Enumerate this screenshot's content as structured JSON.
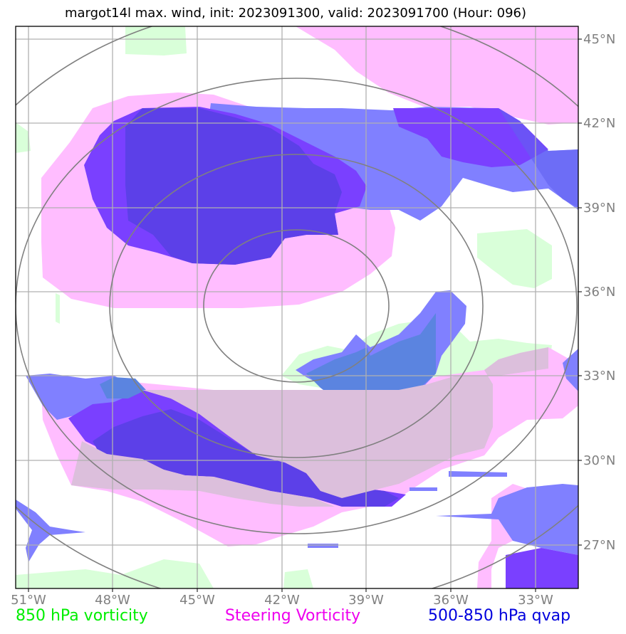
{
  "title": "margot14l max. wind, init: 2023091300, valid: 2023091700 (Hour: 096)",
  "colors": {
    "vort850": "#ccffcc",
    "steering": "#ff99ff",
    "qvap_light": "#8080ff",
    "qvap_dark": "#8040ff",
    "overlap": "#d8bfd8",
    "grid": "#b0b0b0",
    "rings": "#808080",
    "axis_labels": "#808080"
  },
  "longitude_labels": [
    "51°W",
    "48°W",
    "45°W",
    "42°W",
    "39°W",
    "36°W",
    "33°W"
  ],
  "latitude_labels": [
    "45°N",
    "42°N",
    "39°N",
    "36°N",
    "33°N",
    "30°N",
    "27°N"
  ],
  "legend": [
    {
      "label": "850 hPa vorticity",
      "color": "#00ee00"
    },
    {
      "label": "Steering Vorticity",
      "color": "#ee00ee"
    },
    {
      "label": "500-850 hPa qvap",
      "color": "#0000dd"
    }
  ]
}
